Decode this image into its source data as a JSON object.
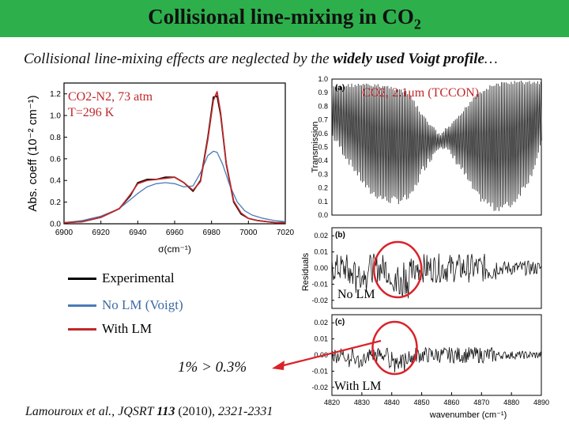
{
  "slide": {
    "title_main": "Collisional line-mixing in CO",
    "title_sub": "2",
    "subtitle_pre": "Collisional line-mixing effects are neglected by the ",
    "subtitle_bold": "widely used Voigt profile",
    "subtitle_post": "…",
    "comparison_note": "1% > 0.3%",
    "ref_pre": "Lamouroux et al., ",
    "ref_journal": "JQSRT ",
    "ref_volume": "113",
    "ref_year": " (2010), ",
    "ref_pages": "2321-2331"
  },
  "legend": [
    {
      "label": "Experimental",
      "color": "#000000"
    },
    {
      "label": "No LM (Voigt)",
      "color": "#4a7bb7"
    },
    {
      "label": "With LM",
      "color": "#c0282a"
    }
  ],
  "colors": {
    "title_bar": "#2db04b",
    "highlight_circle": "#d9232a",
    "arrow": "#d9232a"
  },
  "chart_data": [
    {
      "id": "absorption",
      "type": "line",
      "condition_lines": [
        "CO2-N2, 73 atm",
        "T=296 K"
      ],
      "ylabel": "Abs. coeff (10⁻² cm⁻¹)",
      "xlabel": "σ(cm⁻¹)",
      "xlim": [
        6900,
        7020
      ],
      "ylim": [
        0,
        1.3
      ],
      "xticks": [
        "6900",
        "6920",
        "6940",
        "6960",
        "6980",
        "7000",
        "7020"
      ],
      "yticks": [
        "0.0",
        "0.2",
        "0.4",
        "0.6",
        "0.8",
        "1.0",
        "1.2"
      ],
      "series": [
        {
          "name": "Experimental",
          "x": [
            6900,
            6910,
            6920,
            6930,
            6936,
            6940,
            6945,
            6950,
            6955,
            6960,
            6965,
            6970,
            6974,
            6978,
            6981,
            6983,
            6985,
            6988,
            6992,
            6996,
            7000,
            7005,
            7010,
            7015,
            7020
          ],
          "y": [
            0.01,
            0.02,
            0.06,
            0.14,
            0.26,
            0.38,
            0.41,
            0.41,
            0.43,
            0.43,
            0.38,
            0.3,
            0.4,
            0.8,
            1.17,
            1.18,
            1.0,
            0.55,
            0.2,
            0.09,
            0.05,
            0.03,
            0.02,
            0.01,
            0.01
          ]
        },
        {
          "name": "No LM (Voigt)",
          "x": [
            6900,
            6910,
            6920,
            6930,
            6940,
            6945,
            6950,
            6955,
            6960,
            6965,
            6970,
            6974,
            6978,
            6981,
            6983,
            6986,
            6990,
            6994,
            6998,
            7002,
            7008,
            7014,
            7020
          ],
          "y": [
            0.01,
            0.03,
            0.07,
            0.14,
            0.28,
            0.34,
            0.37,
            0.38,
            0.37,
            0.34,
            0.35,
            0.47,
            0.63,
            0.67,
            0.66,
            0.55,
            0.35,
            0.2,
            0.12,
            0.08,
            0.05,
            0.03,
            0.02
          ]
        },
        {
          "name": "With LM",
          "x": [
            6900,
            6910,
            6920,
            6930,
            6936,
            6940,
            6945,
            6950,
            6955,
            6960,
            6965,
            6970,
            6974,
            6978,
            6981,
            6983,
            6985,
            6988,
            6992,
            6996,
            7000,
            7005,
            7010,
            7015,
            7020
          ],
          "y": [
            0.01,
            0.02,
            0.06,
            0.14,
            0.27,
            0.37,
            0.4,
            0.41,
            0.42,
            0.43,
            0.38,
            0.31,
            0.39,
            0.78,
            1.14,
            1.22,
            1.02,
            0.56,
            0.21,
            0.1,
            0.05,
            0.03,
            0.02,
            0.01,
            0.01
          ]
        }
      ]
    },
    {
      "id": "transmission",
      "type": "line",
      "panel_label": "(a)",
      "annotation": "CO2, 2.1μm (TCCON)",
      "ylabel": "Transmission",
      "xlim": [
        4820,
        4890
      ],
      "ylim": [
        0.0,
        1.0
      ],
      "yticks": [
        "1.0",
        "0.9",
        "0.8",
        "0.7",
        "0.6",
        "0.5",
        "0.4",
        "0.3",
        "0.2",
        "0.1",
        "0.0"
      ],
      "envelope_x": [
        4820,
        4826,
        4832,
        4838,
        4842,
        4846,
        4850,
        4856,
        4862,
        4868,
        4874,
        4880,
        4886,
        4890
      ],
      "envelope_upper": [
        0.95,
        0.97,
        0.97,
        0.96,
        0.94,
        0.9,
        0.75,
        0.6,
        0.72,
        0.9,
        0.97,
        0.99,
        0.99,
        0.99
      ],
      "envelope_lower": [
        0.55,
        0.35,
        0.15,
        0.08,
        0.08,
        0.1,
        0.3,
        0.5,
        0.35,
        0.12,
        0.02,
        0.05,
        0.25,
        0.5
      ]
    },
    {
      "id": "residuals_nolm",
      "type": "line",
      "panel_label": "(b)",
      "annotation": "No LM",
      "ylabel": "Residuals",
      "xlim": [
        4820,
        4890
      ],
      "ylim": [
        -0.025,
        0.025
      ],
      "yticks": [
        "0.02",
        "0.01",
        "0.00",
        "-0.01",
        "-0.02"
      ]
    },
    {
      "id": "residuals_lm",
      "type": "line",
      "panel_label": "(c)",
      "annotation": "With LM",
      "xlabel": "wavenumber (cm⁻¹)",
      "xlim": [
        4820,
        4890
      ],
      "ylim": [
        -0.025,
        0.025
      ],
      "yticks": [
        "0.02",
        "0.01",
        "0.00",
        "-0.01",
        "-0.02"
      ],
      "xticks": [
        "4820",
        "4830",
        "4840",
        "4850",
        "4860",
        "4870",
        "4880",
        "4890"
      ]
    }
  ]
}
